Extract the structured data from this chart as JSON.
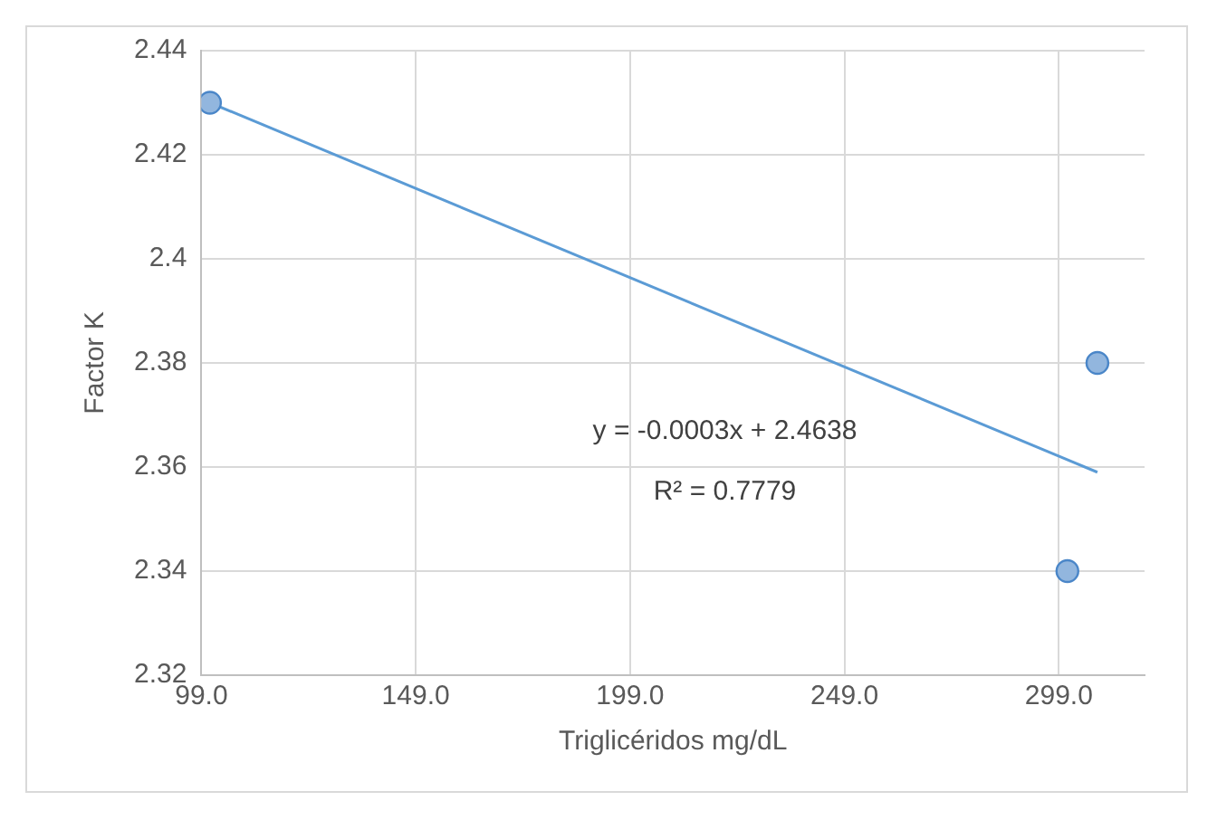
{
  "chart_data": {
    "type": "scatter",
    "xlabel": "Triglicéridos mg/dL",
    "ylabel": "Factor K",
    "xlim": [
      99,
      319
    ],
    "xticks": [
      {
        "value": 99,
        "label": "99.0"
      },
      {
        "value": 149,
        "label": "149.0"
      },
      {
        "value": 199,
        "label": "199.0"
      },
      {
        "value": 249,
        "label": "249.0"
      },
      {
        "value": 299,
        "label": "299.0"
      }
    ],
    "ylim": [
      2.32,
      2.44
    ],
    "yticks": [
      2.32,
      2.34,
      2.36,
      2.38,
      2.4,
      2.42,
      2.44
    ],
    "grid": true,
    "marker": "circle",
    "series": [
      {
        "color": "#4a86c8",
        "x": [
          101,
          301,
          308
        ],
        "values": [
          2.43,
          2.34,
          2.38
        ]
      },
      {
        "type": "line",
        "color": "#5b9bd5",
        "x": [
          101,
          308
        ],
        "values": [
          2.43,
          2.359
        ],
        "marker": "none"
      }
    ],
    "annotations": [
      "y = -0.0003x + 2.4638",
      "R² = 0.7779"
    ]
  }
}
